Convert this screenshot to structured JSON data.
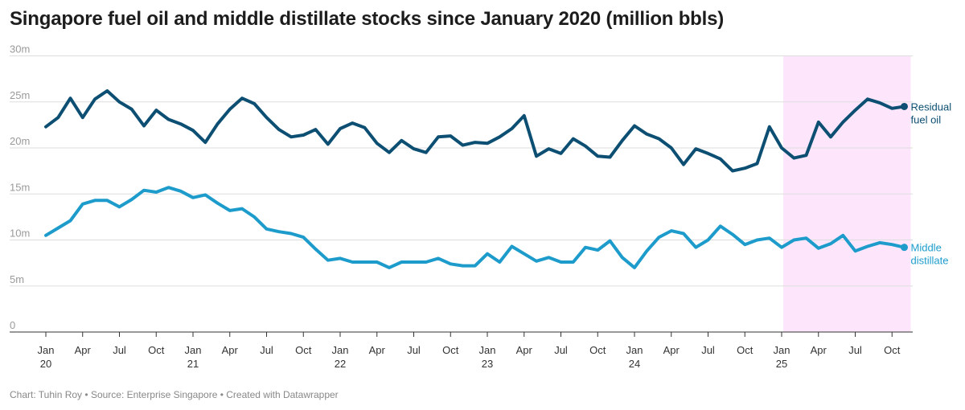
{
  "title": "Singapore fuel oil and middle distillate stocks since January 2020 (million bbls)",
  "footer": {
    "author": "Chart: Tuhin Roy",
    "source": "Source: Enterprise Singapore",
    "credit": "Created with Datawrapper"
  },
  "colors": {
    "residual": "#0d4f73",
    "middle": "#1d9ccc",
    "highlight": "#fde6fb",
    "grid": "#dddddd",
    "axis": "#333333"
  },
  "chart_data": {
    "type": "line",
    "title": "Singapore fuel oil and middle distillate stocks since January 2020 (million bbls)",
    "x_start": "2020-01",
    "x_end": "2025-11",
    "x_ticks": [
      {
        "month": "2020-01",
        "label": "Jan",
        "sublabel": "20"
      },
      {
        "month": "2020-04",
        "label": "Apr"
      },
      {
        "month": "2020-07",
        "label": "Jul"
      },
      {
        "month": "2020-10",
        "label": "Oct"
      },
      {
        "month": "2021-01",
        "label": "Jan",
        "sublabel": "21"
      },
      {
        "month": "2021-04",
        "label": "Apr"
      },
      {
        "month": "2021-07",
        "label": "Jul"
      },
      {
        "month": "2021-10",
        "label": "Oct"
      },
      {
        "month": "2022-01",
        "label": "Jan",
        "sublabel": "22"
      },
      {
        "month": "2022-04",
        "label": "Apr"
      },
      {
        "month": "2022-07",
        "label": "Jul"
      },
      {
        "month": "2022-10",
        "label": "Oct"
      },
      {
        "month": "2023-01",
        "label": "Jan",
        "sublabel": "23"
      },
      {
        "month": "2023-04",
        "label": "Apr"
      },
      {
        "month": "2023-07",
        "label": "Jul"
      },
      {
        "month": "2023-10",
        "label": "Oct"
      },
      {
        "month": "2024-01",
        "label": "Jan",
        "sublabel": "24"
      },
      {
        "month": "2024-04",
        "label": "Apr"
      },
      {
        "month": "2024-07",
        "label": "Jul"
      },
      {
        "month": "2024-10",
        "label": "Oct"
      },
      {
        "month": "2025-01",
        "label": "Jan",
        "sublabel": "25"
      },
      {
        "month": "2025-04",
        "label": "Apr"
      },
      {
        "month": "2025-07",
        "label": "Jul"
      },
      {
        "month": "2025-10",
        "label": "Oct"
      }
    ],
    "y_ticks": [
      {
        "value": 0,
        "label": "0"
      },
      {
        "value": 5,
        "label": "5m"
      },
      {
        "value": 10,
        "label": "10m"
      },
      {
        "value": 15,
        "label": "15m"
      },
      {
        "value": 20,
        "label": "20m"
      },
      {
        "value": 25,
        "label": "25m"
      },
      {
        "value": 30,
        "label": "30m"
      }
    ],
    "ylim": [
      0,
      30
    ],
    "highlight": {
      "start": "2025-01",
      "end": "2025-11"
    },
    "grid": true,
    "series": [
      {
        "name": "Residual fuel oil",
        "label_lines": [
          "Residual",
          "fuel oil"
        ],
        "values": [
          22.3,
          23.3,
          25.4,
          23.3,
          25.3,
          26.2,
          25.0,
          24.2,
          22.4,
          24.1,
          23.1,
          22.6,
          21.9,
          20.6,
          22.6,
          24.2,
          25.4,
          24.8,
          23.3,
          22.0,
          21.2,
          21.4,
          22.0,
          20.4,
          22.1,
          22.7,
          22.2,
          20.5,
          19.5,
          20.8,
          19.9,
          19.5,
          21.2,
          21.3,
          20.3,
          20.6,
          20.5,
          21.2,
          22.1,
          23.5,
          19.1,
          19.9,
          19.4,
          21.0,
          20.2,
          19.1,
          19.0,
          20.8,
          22.4,
          21.5,
          21.0,
          20.0,
          18.2,
          19.9,
          19.4,
          18.8,
          17.5,
          17.8,
          18.3,
          22.3,
          20.0,
          18.9,
          19.2,
          22.8,
          21.2,
          22.8,
          24.1,
          25.3,
          24.9,
          24.3,
          24.5
        ],
        "end_value": 24.5
      },
      {
        "name": "Middle distillate",
        "label_lines": [
          "Middle",
          "distillate"
        ],
        "values": [
          10.5,
          11.3,
          12.1,
          13.9,
          14.3,
          14.3,
          13.6,
          14.4,
          15.4,
          15.2,
          15.7,
          15.3,
          14.6,
          14.9,
          14.0,
          13.2,
          13.4,
          12.5,
          11.2,
          10.9,
          10.7,
          10.3,
          9.0,
          7.8,
          8.0,
          7.6,
          7.6,
          7.6,
          7.0,
          7.6,
          7.6,
          7.6,
          8.0,
          7.4,
          7.2,
          7.2,
          8.5,
          7.6,
          9.3,
          8.5,
          7.7,
          8.1,
          7.6,
          7.6,
          9.2,
          8.9,
          9.9,
          8.1,
          7.0,
          8.8,
          10.3,
          11.0,
          10.7,
          9.2,
          10.0,
          11.5,
          10.6,
          9.5,
          10.0,
          10.2,
          9.2,
          10.0,
          10.2,
          9.1,
          9.6,
          10.5,
          8.8,
          9.3,
          9.7,
          9.5,
          9.2
        ],
        "end_value": 9.2
      }
    ]
  }
}
